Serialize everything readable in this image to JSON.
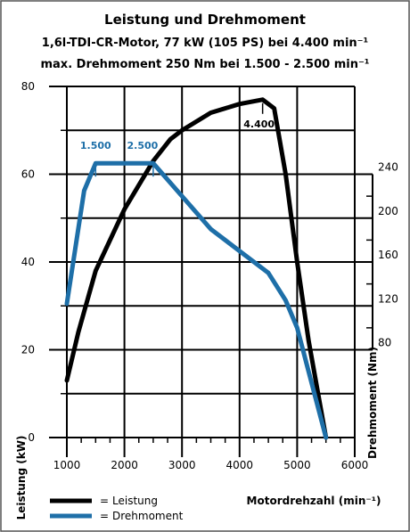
{
  "chart_data": {
    "type": "line",
    "title": "Leistung und Drehmoment",
    "subtitle_lines": [
      "1,6l-TDI-CR-Motor, 77 kW (105 PS) bei 4.400 min⁻¹",
      "max. Drehmoment 250 Nm bei 1.500 - 2.500 min⁻¹"
    ],
    "xlabel": "Motordrehzahl (min⁻¹)",
    "y_left_label": "Leistung (kW)",
    "y_right_label": "Drehmoment (Nm)",
    "xlim": [
      1000,
      6000
    ],
    "x_ticks": [
      "1000",
      "2000",
      "3000",
      "4000",
      "5000",
      "6000"
    ],
    "y_left_lim": [
      0,
      80
    ],
    "y_left_ticks": [
      "0",
      "20",
      "40",
      "60",
      "80"
    ],
    "y_right_lim": [
      0,
      320
    ],
    "y_right_ticks": [
      "80",
      "120",
      "160",
      "200",
      "240"
    ],
    "grid": true,
    "legend_position": "bottom-left",
    "series": [
      {
        "name": "Leistung",
        "axis": "left",
        "color": "#000000",
        "x": [
          1000,
          1200,
          1500,
          2000,
          2500,
          2800,
          3000,
          3500,
          4000,
          4400,
          4600,
          4800,
          5000,
          5200,
          5500
        ],
        "y": [
          13,
          24,
          38,
          52,
          63,
          68,
          70,
          74,
          76,
          77,
          75,
          60,
          40,
          22,
          0
        ]
      },
      {
        "name": "Drehmoment",
        "axis": "right",
        "color": "#1e6fa8",
        "x": [
          1000,
          1300,
          1500,
          2000,
          2500,
          3000,
          3500,
          4000,
          4500,
          4800,
          5000,
          5200,
          5500
        ],
        "y": [
          122,
          225,
          250,
          250,
          250,
          220,
          190,
          170,
          150,
          125,
          100,
          60,
          0
        ]
      }
    ],
    "annotations": [
      {
        "text": "4.400",
        "x": 4400,
        "series": "Leistung"
      },
      {
        "text": "1.500",
        "x": 1500,
        "series": "Drehmoment"
      },
      {
        "text": "2.500",
        "x": 2500,
        "series": "Drehmoment"
      }
    ],
    "legend": [
      {
        "symbol": "=",
        "label": "Leistung",
        "color": "#000000"
      },
      {
        "symbol": "=",
        "label": "Drehmoment",
        "color": "#1e6fa8"
      }
    ]
  }
}
